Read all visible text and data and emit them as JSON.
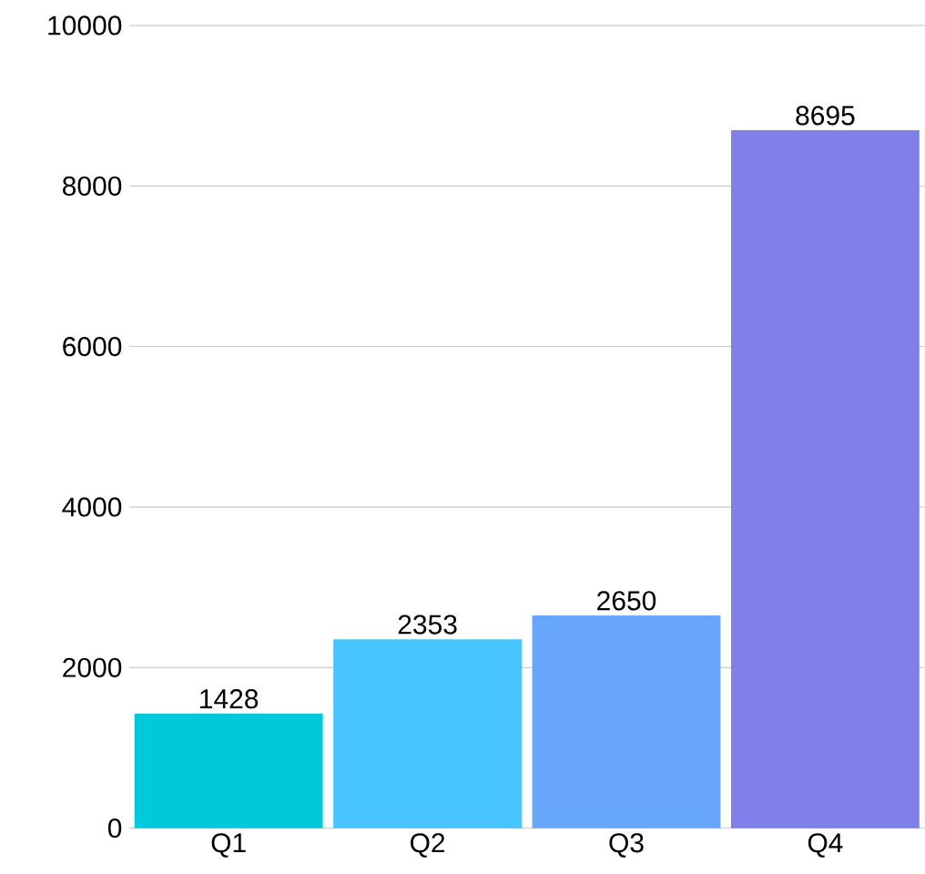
{
  "chart_data": {
    "type": "bar",
    "categories": [
      "Q1",
      "Q2",
      "Q3",
      "Q4"
    ],
    "values": [
      1428,
      2353,
      2650,
      8695
    ],
    "colors": [
      "#00c9db",
      "#48c4fe",
      "#67a6fa",
      "#7f80e9"
    ],
    "ylim": [
      0,
      10000
    ],
    "yticks": [
      0,
      2000,
      4000,
      6000,
      8000,
      10000
    ],
    "grid": "y",
    "data_labels": true
  }
}
